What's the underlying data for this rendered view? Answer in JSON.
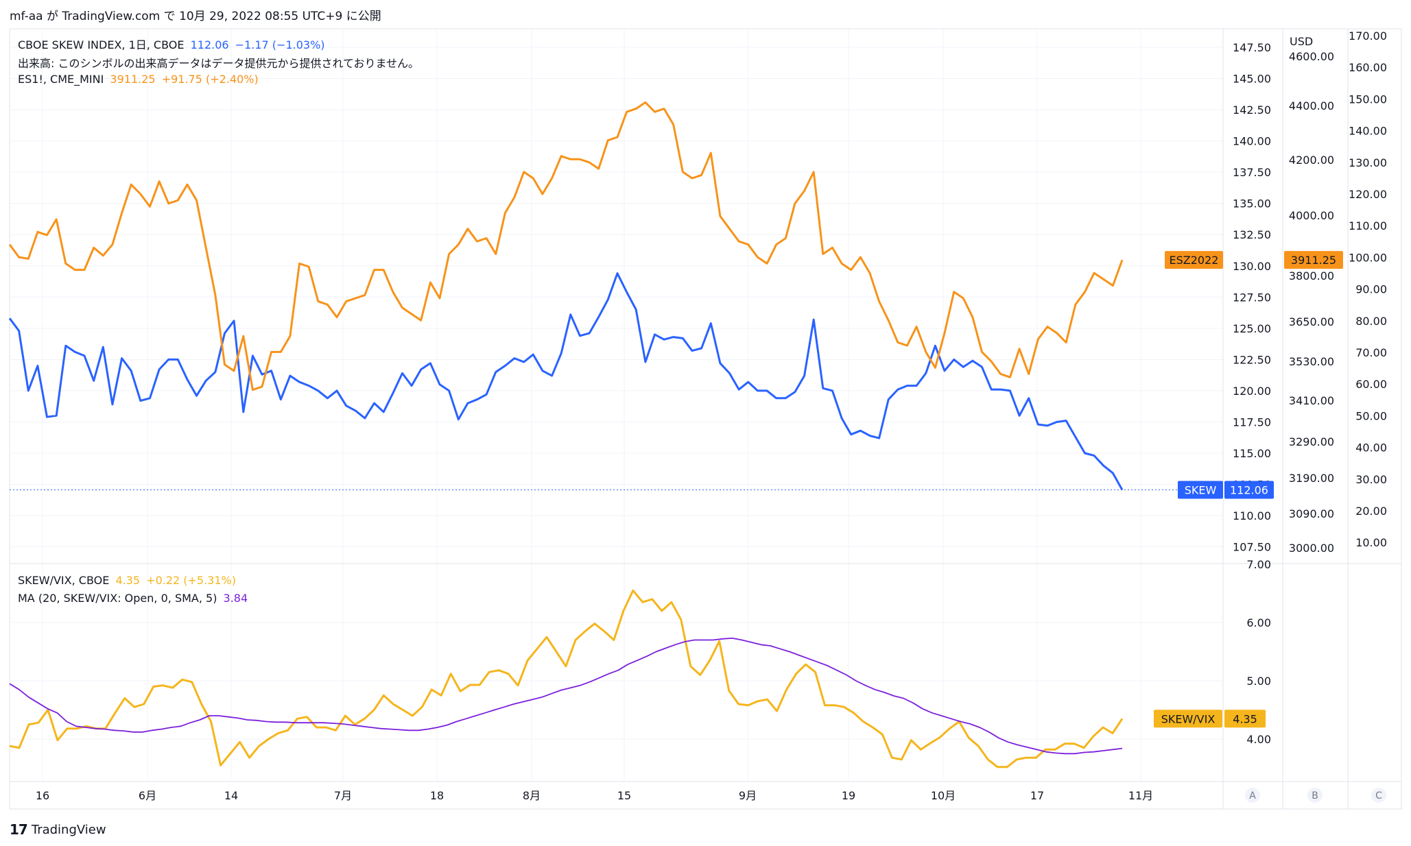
{
  "header": {
    "text": "mf-aa が TradingView.com で 10月 29, 2022 08:55 UTC+9 に公開"
  },
  "legend_main": {
    "skew_name": "CBOE SKEW INDEX, 1日, CBOE",
    "skew_value": "112.06",
    "skew_change": "−1.17 (−1.03%)",
    "volume_note": "出来高: このシンボルの出来高データはデータ提供元から提供されておりません。",
    "es_name": "ES1!, CME_MINI",
    "es_value": "3911.25",
    "es_change": "+91.75 (+2.40%)"
  },
  "legend_lower": {
    "ratio_name": "SKEW/VIX, CBOE",
    "ratio_value": "4.35",
    "ratio_change": "+0.22 (+5.31%)",
    "ma_name": "MA (20, SKEW/VIX: Open, 0, SMA, 5)",
    "ma_value": "3.84"
  },
  "footer": {
    "logo_text": "TradingView"
  },
  "colors": {
    "skew": "#2962ff",
    "es": "#f7931a",
    "ratio": "#f5b51c",
    "ma": "#7b1fdb",
    "grid": "#f0f3fa",
    "border": "#e0e3eb"
  },
  "chart_data": [
    {
      "type": "line",
      "x_tick_labels": [
        "16",
        "6月",
        "14",
        "7月",
        "18",
        "8月",
        "15",
        "9月",
        "19",
        "10月",
        "17",
        "11月"
      ],
      "axis_A_label": "A",
      "axis_A_ticks": [
        "147.50",
        "145.00",
        "142.50",
        "140.00",
        "137.50",
        "135.00",
        "132.50",
        "130.00",
        "127.50",
        "125.00",
        "122.50",
        "120.00",
        "117.50",
        "115.00",
        "112.50",
        "110.00",
        "107.50"
      ],
      "axis_B_label": "B",
      "axis_B_unit": "USD",
      "axis_B_ticks": [
        "4600.00",
        "4400.00",
        "4200.00",
        "4000.00",
        "3800.00",
        "3650.00",
        "3530.00",
        "3410.00",
        "3290.00",
        "3190.00",
        "3090.00",
        "3000.00"
      ],
      "axis_C_label": "C",
      "axis_C_ticks": [
        "170.00",
        "160.00",
        "150.00",
        "140.00",
        "130.00",
        "120.00",
        "110.00",
        "100.00",
        "90.00",
        "80.00",
        "70.00",
        "60.00",
        "50.00",
        "40.00",
        "30.00",
        "20.00",
        "10.00"
      ],
      "series": [
        {
          "name": "SKEW",
          "last_label": "112.06",
          "values": [
            125.8,
            124.8,
            120.0,
            122.0,
            117.9,
            118.0,
            123.6,
            123.1,
            122.8,
            120.8,
            123.5,
            118.9,
            122.6,
            121.6,
            119.2,
            119.4,
            121.7,
            122.5,
            122.5,
            120.9,
            119.6,
            120.8,
            121.5,
            124.6,
            125.6,
            118.3,
            122.8,
            121.3,
            121.6,
            119.3,
            121.2,
            120.7,
            120.4,
            120.0,
            119.4,
            120.0,
            118.8,
            118.4,
            117.8,
            119.0,
            118.3,
            119.8,
            121.4,
            120.4,
            121.7,
            122.2,
            120.5,
            120.0,
            117.7,
            119.0,
            119.3,
            119.7,
            121.5,
            122.0,
            122.6,
            122.3,
            122.9,
            121.6,
            121.2,
            123.0,
            126.1,
            124.4,
            124.6,
            125.9,
            127.3,
            129.4,
            127.9,
            126.5,
            122.3,
            124.5,
            124.1,
            124.3,
            124.2,
            123.2,
            123.4,
            125.4,
            122.2,
            121.4,
            120.1,
            120.7,
            120.0,
            120.0,
            119.4,
            119.4,
            119.9,
            121.2,
            125.7,
            120.2,
            120.0,
            117.8,
            116.5,
            116.8,
            116.4,
            116.2,
            119.3,
            120.1,
            120.4,
            120.4,
            121.4,
            123.6,
            121.6,
            122.5,
            121.9,
            122.4,
            121.9,
            120.1,
            120.1,
            120.0,
            118.0,
            119.4,
            117.3,
            117.2,
            117.5,
            117.6,
            116.3,
            115.0,
            114.8,
            114.0,
            113.4,
            112.06
          ]
        },
        {
          "name": "ESZ2022",
          "last_label": "3911.25",
          "values": [
            3960,
            3920,
            3915,
            4000,
            3990,
            4040,
            3900,
            3880,
            3880,
            3950,
            3925,
            3960,
            4060,
            4150,
            4120,
            4080,
            4160,
            4090,
            4100,
            4150,
            4100,
            3950,
            3800,
            3580,
            3560,
            3670,
            3500,
            3510,
            3620,
            3620,
            3670,
            3900,
            3890,
            3780,
            3770,
            3730,
            3780,
            3790,
            3800,
            3880,
            3880,
            3810,
            3760,
            3740,
            3720,
            3840,
            3790,
            3930,
            3960,
            4010,
            3970,
            3980,
            3930,
            4060,
            4110,
            4190,
            4170,
            4120,
            4170,
            4240,
            4230,
            4230,
            4220,
            4200,
            4290,
            4300,
            4380,
            4390,
            4410,
            4380,
            4390,
            4340,
            4190,
            4170,
            4180,
            4250,
            4050,
            4010,
            3970,
            3960,
            3920,
            3900,
            3960,
            3980,
            4090,
            4130,
            4190,
            3930,
            3950,
            3900,
            3880,
            3920,
            3870,
            3780,
            3720,
            3650,
            3640,
            3700,
            3620,
            3570,
            3680,
            3810,
            3790,
            3730,
            3620,
            3590,
            3550,
            3540,
            3630,
            3550,
            3660,
            3700,
            3680,
            3650,
            3770,
            3810,
            3870,
            3850,
            3830,
            3911.25
          ]
        }
      ]
    },
    {
      "type": "line",
      "x_tick_labels": [
        "16",
        "6月",
        "14",
        "7月",
        "18",
        "8月",
        "15",
        "9月",
        "19",
        "10月",
        "17",
        "11月"
      ],
      "y_tick_labels": [
        "7.00",
        "6.00",
        "5.00",
        "4.00"
      ],
      "series": [
        {
          "name": "SKEW/VIX",
          "last_label": "4.35",
          "values": [
            3.88,
            3.85,
            4.25,
            4.28,
            4.5,
            3.98,
            4.18,
            4.18,
            4.22,
            4.18,
            4.18,
            4.45,
            4.7,
            4.55,
            4.6,
            4.9,
            4.92,
            4.88,
            5.02,
            4.98,
            4.6,
            4.3,
            3.55,
            3.75,
            3.95,
            3.68,
            3.88,
            4.0,
            4.1,
            4.15,
            4.35,
            4.38,
            4.2,
            4.2,
            4.15,
            4.4,
            4.25,
            4.35,
            4.5,
            4.75,
            4.6,
            4.5,
            4.4,
            4.55,
            4.85,
            4.75,
            5.12,
            4.82,
            4.93,
            4.93,
            5.15,
            5.18,
            5.12,
            4.92,
            5.35,
            5.55,
            5.75,
            5.5,
            5.25,
            5.7,
            5.85,
            5.98,
            5.85,
            5.7,
            6.2,
            6.55,
            6.35,
            6.4,
            6.2,
            6.35,
            6.05,
            5.25,
            5.1,
            5.35,
            5.68,
            4.83,
            4.6,
            4.58,
            4.65,
            4.68,
            4.48,
            4.85,
            5.12,
            5.28,
            5.15,
            4.58,
            4.58,
            4.55,
            4.45,
            4.3,
            4.2,
            4.08,
            3.68,
            3.65,
            3.98,
            3.82,
            3.93,
            4.03,
            4.18,
            4.3,
            4.02,
            3.88,
            3.65,
            3.52,
            3.52,
            3.65,
            3.68,
            3.68,
            3.82,
            3.82,
            3.92,
            3.92,
            3.85,
            4.05,
            4.2,
            4.1,
            4.35
          ]
        },
        {
          "name": "MA",
          "values": [
            4.95,
            4.85,
            4.72,
            4.62,
            4.52,
            4.45,
            4.3,
            4.22,
            4.2,
            4.18,
            4.17,
            4.15,
            4.14,
            4.12,
            4.12,
            4.15,
            4.17,
            4.2,
            4.22,
            4.28,
            4.33,
            4.4,
            4.4,
            4.38,
            4.36,
            4.33,
            4.32,
            4.3,
            4.29,
            4.29,
            4.28,
            4.28,
            4.28,
            4.28,
            4.27,
            4.26,
            4.24,
            4.22,
            4.2,
            4.18,
            4.17,
            4.16,
            4.15,
            4.15,
            4.17,
            4.2,
            4.24,
            4.3,
            4.35,
            4.4,
            4.45,
            4.5,
            4.55,
            4.6,
            4.64,
            4.68,
            4.72,
            4.78,
            4.84,
            4.88,
            4.92,
            4.98,
            5.05,
            5.12,
            5.18,
            5.28,
            5.35,
            5.42,
            5.5,
            5.56,
            5.62,
            5.67,
            5.7,
            5.7,
            5.7,
            5.72,
            5.73,
            5.7,
            5.66,
            5.62,
            5.6,
            5.55,
            5.5,
            5.44,
            5.38,
            5.32,
            5.26,
            5.18,
            5.1,
            5.0,
            4.92,
            4.85,
            4.8,
            4.74,
            4.7,
            4.62,
            4.52,
            4.45,
            4.4,
            4.35,
            4.3,
            4.26,
            4.2,
            4.12,
            4.02,
            3.95,
            3.9,
            3.86,
            3.82,
            3.78,
            3.76,
            3.75,
            3.75,
            3.77,
            3.78,
            3.8,
            3.82,
            3.84
          ]
        }
      ]
    }
  ]
}
